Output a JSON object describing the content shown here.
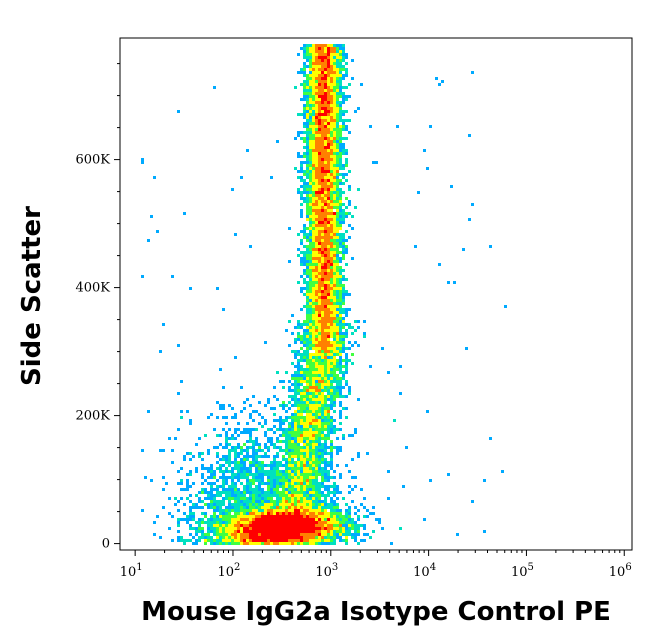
{
  "chart_data": {
    "type": "scatter",
    "style": "density-pseudocolor",
    "xlabel": "Mouse IgG2a Isotype Control PE",
    "ylabel": "Side Scatter",
    "x_scale": "log",
    "xlim": [
      7,
      1200000
    ],
    "ylim": [
      -10000,
      790000
    ],
    "x_ticks": [
      {
        "value": 10,
        "base": "10",
        "exp": "1"
      },
      {
        "value": 100,
        "base": "10",
        "exp": "2"
      },
      {
        "value": 1000,
        "base": "10",
        "exp": "3"
      },
      {
        "value": 10000,
        "base": "10",
        "exp": "4"
      },
      {
        "value": 100000,
        "base": "10",
        "exp": "5"
      },
      {
        "value": 1000000,
        "base": "10",
        "exp": "6"
      }
    ],
    "y_ticks": [
      {
        "value": 0,
        "label": "0"
      },
      {
        "value": 200000,
        "label": "200K"
      },
      {
        "value": 400000,
        "label": "400K"
      },
      {
        "value": 600000,
        "label": "600K"
      }
    ],
    "density_colors": [
      "#0000ff",
      "#00aaff",
      "#00e0c0",
      "#40ff40",
      "#ffff00",
      "#ff8000",
      "#ff0000"
    ],
    "populations": [
      {
        "name_hidden": "low-ssc",
        "x_center": 320,
        "x_spread_decades": 0.28,
        "y_center": 25000,
        "y_spread": 14000
      },
      {
        "name_hidden": "high-ssc",
        "x_center": 850,
        "x_spread_decades": 0.09,
        "y_min": 30000,
        "y_max": 780000
      }
    ]
  }
}
